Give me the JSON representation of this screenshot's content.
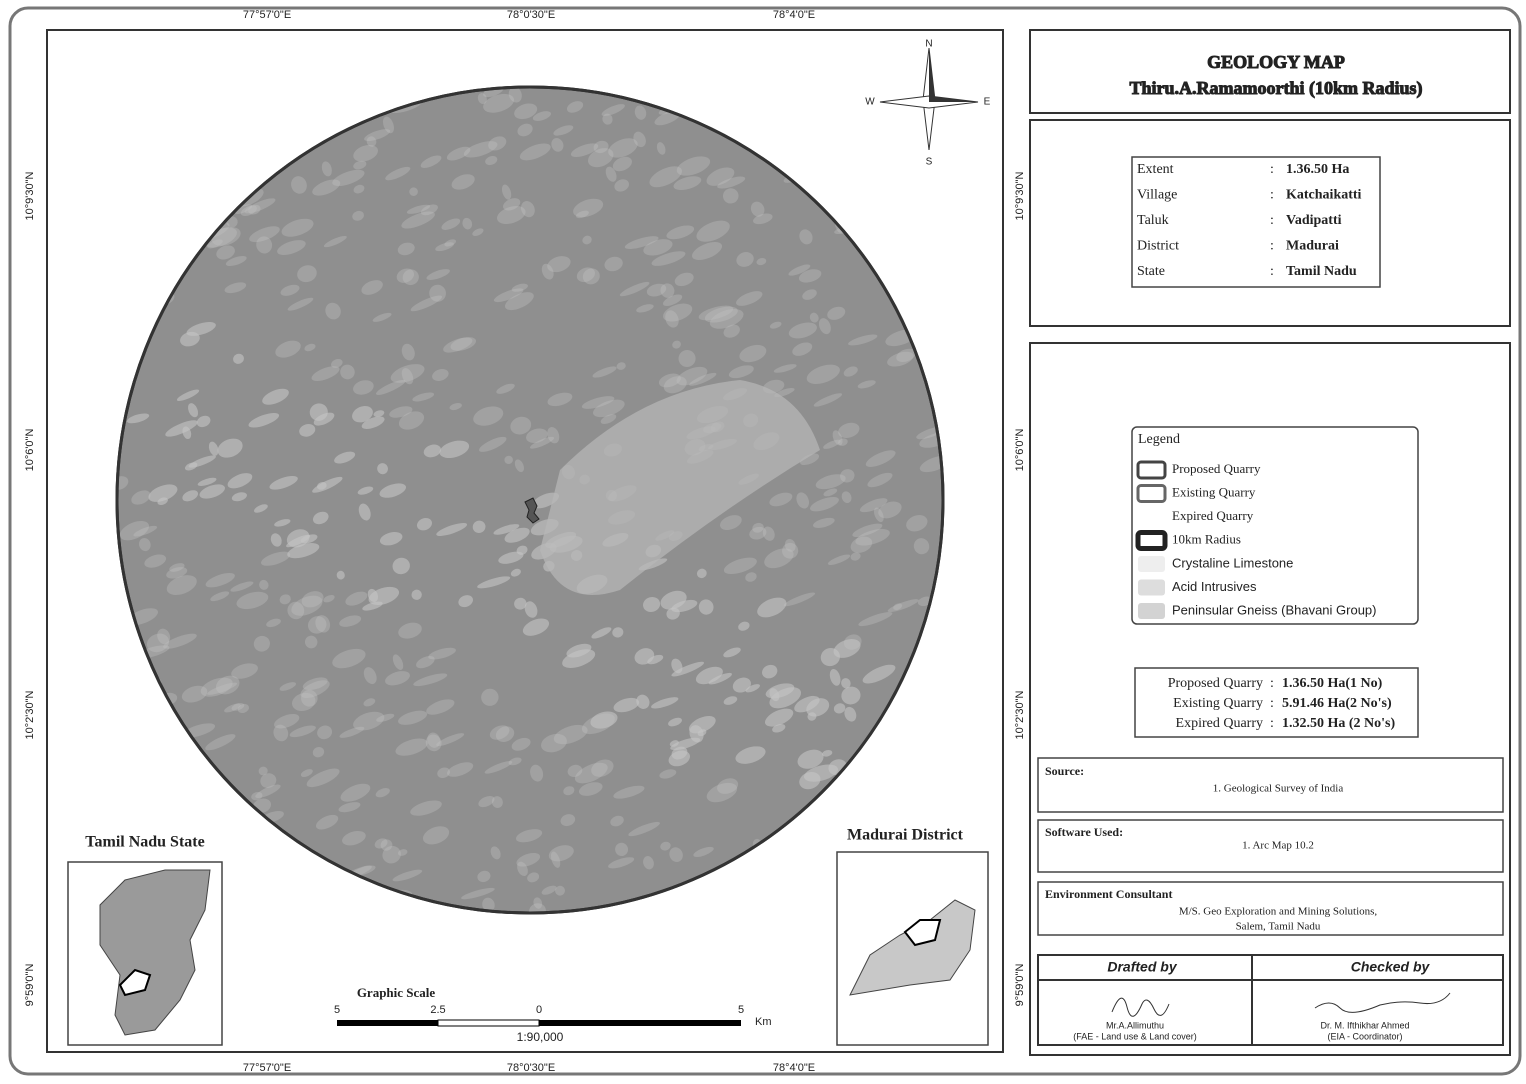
{
  "title": "GEOLOGY MAP",
  "subtitle": "Thiru.A.Ramamoorthi (10km Radius)",
  "coordinates": {
    "x": [
      "77°57'0\"E",
      "78°0'30\"E",
      "78°4'0\"E"
    ],
    "y": [
      "10°9'30\"N",
      "10°6'0\"N",
      "10°2'30\"N",
      "9°59'0\"N"
    ]
  },
  "north_arrow": {
    "n": "N",
    "s": "S",
    "e": "E",
    "w": "W"
  },
  "info": [
    {
      "label": "Extent",
      "value": "1.36.50 Ha"
    },
    {
      "label": "Village",
      "value": "Katchaikatti"
    },
    {
      "label": "Taluk",
      "value": "Vadipatti"
    },
    {
      "label": "District",
      "value": "Madurai"
    },
    {
      "label": "State",
      "value": "Tamil Nadu"
    }
  ],
  "legend": {
    "title": "Legend",
    "items": [
      "Proposed Quarry",
      "Existing Quarry",
      "Expired Quarry",
      "10km Radius",
      "Crystaline Limestone",
      "Acid Intrusives",
      "Peninsular Gneiss (Bhavani Group)"
    ]
  },
  "summary": [
    {
      "label": "Proposed Quarry",
      "value": "1.36.50 Ha(1 No)"
    },
    {
      "label": "Existing Quarry",
      "value": "5.91.46 Ha(2 No's)"
    },
    {
      "label": "Expired Quarry",
      "value": "1.32.50 Ha (2 No's)"
    }
  ],
  "source": {
    "heading": "Source:",
    "lines": [
      "1. Geological Survey of India"
    ]
  },
  "software": {
    "heading": "Software Used:",
    "lines": [
      "1. Arc Map 10.2"
    ]
  },
  "consultant": {
    "heading": "Environment Consultant",
    "lines": [
      "M/S. Geo Exploration and Mining Solutions,",
      "Salem, Tamil Nadu"
    ]
  },
  "drafted": {
    "heading": "Drafted by",
    "name": "Mr.A.Allimuthu",
    "role": "(FAE - Land use & Land cover)"
  },
  "checked": {
    "heading": "Checked by",
    "name": "Dr. M. Ifthikhar Ahmed",
    "role": "(EIA - Coordinator)"
  },
  "insets": {
    "state": "Tamil Nadu State",
    "district": "Madurai District"
  },
  "scale": {
    "title": "Graphic Scale",
    "ticks": [
      "5",
      "2.5",
      "0",
      "5"
    ],
    "unit": "Km",
    "ratio": "1:90,000"
  }
}
